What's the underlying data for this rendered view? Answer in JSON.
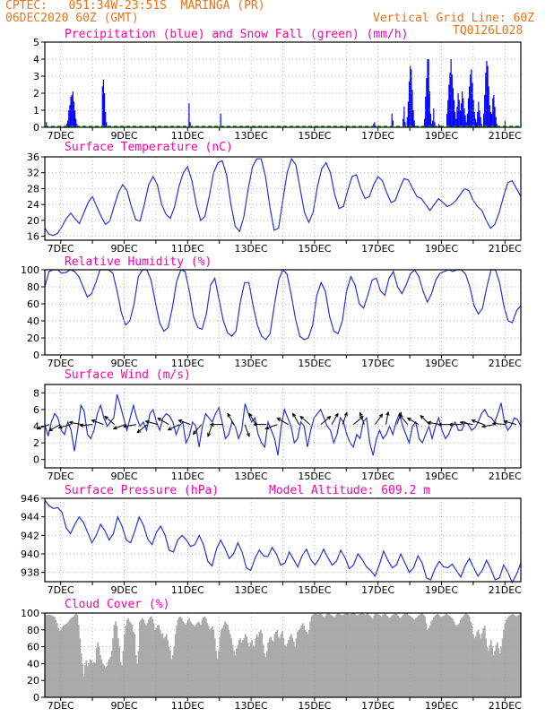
{
  "header": {
    "line1_left": "CPTEC:   051:34W-23:51S  MARINGA (PR)",
    "line2_left": "06DEC2020 60Z (GMT)",
    "line1_right": "Vertical Grid Line: 60Z",
    "line2_right": "TQ0126L028"
  },
  "colors": {
    "header": "#e8731a",
    "title": "#ff00aa",
    "precip": "#0000ff",
    "snow": "#00aa00",
    "line": "#2233dd",
    "cloud": "#aaaaaa",
    "wind": "#000000"
  },
  "chart_data": [
    {
      "id": "precip",
      "type": "bar",
      "title": "Precipitation (blue) and Snow Fall (green) (mm/h)",
      "xticks": [
        "7DEC",
        "9DEC",
        "11DEC",
        "13DEC",
        "15DEC",
        "17DEC",
        "19DEC",
        "21DEC"
      ],
      "ylim": [
        0,
        5
      ],
      "yticks": [
        0,
        1,
        2,
        3,
        4,
        5
      ],
      "values": [
        0,
        0.3,
        0,
        0,
        0,
        0,
        0,
        0,
        0,
        0,
        0,
        0,
        0,
        0,
        0,
        0,
        0,
        0,
        0,
        0,
        0,
        0.2,
        0.4,
        1.0,
        1.3,
        1.8,
        1.9,
        2.1,
        1.5,
        1.0,
        0.5,
        0.2,
        0,
        0,
        0,
        0,
        0,
        0,
        0,
        0,
        0,
        0,
        0,
        0,
        0,
        0,
        0,
        0,
        0,
        0,
        0,
        0,
        0,
        0,
        0,
        0,
        2.4,
        2.8,
        2.0,
        0.9,
        0.3,
        0,
        0,
        0,
        0,
        0,
        0,
        0,
        0,
        0,
        0,
        0,
        0,
        0,
        0,
        0,
        0,
        0,
        0,
        0,
        0,
        0,
        0,
        0,
        0,
        0,
        0,
        0,
        0,
        0,
        0,
        0,
        0,
        0,
        0,
        0,
        0,
        0,
        0,
        0,
        0,
        0,
        0,
        0,
        0,
        0,
        0,
        0,
        0,
        0,
        0,
        0,
        0,
        0,
        0,
        0,
        0,
        0,
        0,
        0,
        0,
        0,
        0,
        0,
        0,
        0,
        0,
        0,
        0,
        0,
        0,
        0,
        0,
        0,
        0,
        0,
        0,
        0,
        0,
        0,
        0,
        1.4,
        0.3,
        0,
        0,
        0,
        0,
        0,
        0,
        0,
        0,
        0,
        0,
        0,
        0,
        0,
        0,
        0,
        0,
        0,
        0,
        0,
        0,
        0,
        0,
        0,
        0,
        0,
        0,
        0,
        0,
        0,
        0.8,
        0,
        0,
        0,
        0,
        0,
        0,
        0,
        0,
        0,
        0,
        0,
        0,
        0,
        0,
        0,
        0,
        0,
        0,
        0,
        0,
        0,
        0,
        0,
        0,
        0,
        0,
        0,
        0,
        0,
        0,
        0,
        0,
        0,
        0,
        0,
        0,
        0,
        0,
        0,
        0,
        0,
        0,
        0,
        0,
        0,
        0,
        0,
        0,
        0,
        0,
        0,
        0,
        0,
        0,
        0,
        0,
        0,
        0,
        0,
        0,
        0,
        0,
        0,
        0,
        0,
        0,
        0,
        0,
        0,
        0,
        0,
        0,
        0,
        0,
        0,
        0,
        0,
        0,
        0,
        0,
        0,
        0,
        0,
        0,
        0,
        0,
        0,
        0,
        0,
        0,
        0,
        0,
        0,
        0,
        0,
        0,
        0,
        0,
        0,
        0,
        0,
        0,
        0,
        0,
        0,
        0,
        0,
        0,
        0,
        0,
        0,
        0,
        0,
        0,
        0,
        0,
        0,
        0,
        0,
        0,
        0,
        0,
        0,
        0,
        0,
        0,
        0,
        0,
        0,
        0,
        0,
        0,
        0,
        0,
        0,
        0,
        0,
        0,
        0,
        0,
        0,
        0,
        0,
        0,
        0,
        0,
        0,
        0,
        0,
        0.2,
        0.3,
        0.1,
        0,
        0,
        0,
        0,
        0,
        0,
        0,
        0,
        0,
        0,
        0,
        0,
        0,
        0,
        0,
        0.8,
        0.4,
        0,
        0,
        0,
        0,
        0,
        0,
        0,
        0,
        0,
        0.5,
        1.2,
        0.3,
        0,
        0.6,
        1.5,
        2.7,
        3.6,
        3.4,
        2.2,
        1.0,
        0.4,
        0,
        0,
        0,
        0,
        0,
        0,
        0,
        0,
        0,
        0.5,
        1.8,
        2.9,
        4.0,
        4.0,
        2.1,
        0.8,
        0.2,
        0.4,
        1.1,
        0.3,
        0,
        0,
        0,
        0.2,
        0.1,
        0,
        0,
        0,
        0,
        0,
        0,
        0.8,
        1.6,
        2.5,
        3.2,
        4.0,
        3.1,
        2.3,
        1.6,
        0.9,
        0.5,
        1.2,
        2.0,
        1.6,
        1.0,
        1.4,
        2.1,
        1.7,
        1.1,
        0.7,
        0.3,
        0.8,
        1.7,
        2.4,
        3.1,
        3.4,
        2.6,
        1.6,
        0.9,
        0.5,
        0.3,
        0.9,
        1.5,
        1.0,
        0.6,
        0.2,
        0,
        0.8,
        1.9,
        3.2,
        3.9,
        3.6,
        2.4,
        1.3,
        0.9,
        0.8,
        1.7,
        1.9,
        1.2,
        0.6,
        0.2,
        0,
        0,
        0,
        0,
        0,
        0,
        0.1,
        0.4,
        0,
        0,
        0,
        0,
        0,
        0,
        0,
        0,
        0,
        0,
        0,
        0,
        0,
        0,
        0
      ]
    },
    {
      "id": "temp",
      "type": "line",
      "title": "Surface Temperature (nC)",
      "xticks": [
        "7DEC",
        "9DEC",
        "11DEC",
        "13DEC",
        "15DEC",
        "17DEC",
        "19DEC",
        "21DEC"
      ],
      "ylim": [
        15,
        36
      ],
      "yticks": [
        16,
        20,
        24,
        28,
        32,
        36
      ],
      "values": [
        18,
        16.5,
        16.2,
        16.8,
        18.5,
        20.5,
        21.8,
        20.4,
        19.2,
        21.8,
        24.5,
        26,
        23.5,
        21,
        19,
        19.8,
        23.5,
        27,
        29,
        27.5,
        23.5,
        20.2,
        19.8,
        24,
        29,
        31,
        29,
        24,
        21.5,
        20.5,
        23.5,
        28.5,
        32,
        33.5,
        30,
        24,
        20,
        21,
        26,
        32,
        34.5,
        35,
        31.5,
        24,
        18.5,
        17.2,
        21,
        28,
        33.5,
        35.5,
        35.5,
        31,
        23.5,
        17.5,
        18,
        25,
        32,
        35.5,
        34,
        28,
        22,
        19.5,
        22,
        28.5,
        33,
        34.5,
        32,
        26.5,
        23,
        23.5,
        27.5,
        31,
        31.5,
        28,
        25.5,
        26,
        29,
        31,
        30,
        27,
        24.5,
        25,
        28,
        30.5,
        30.2,
        28,
        26,
        25.5,
        24,
        22.5,
        24,
        25.5,
        24.5,
        23.5,
        24,
        25,
        26.5,
        28,
        27.5,
        25,
        23.5,
        22.5,
        20,
        18,
        19,
        22,
        26,
        29.5,
        30,
        28,
        26
      ]
    },
    {
      "id": "rh",
      "type": "line",
      "title": "Relative Humidity (%)",
      "xticks": [
        "7DEC",
        "9DEC",
        "11DEC",
        "13DEC",
        "15DEC",
        "17DEC",
        "19DEC",
        "21DEC"
      ],
      "ylim": [
        0,
        100
      ],
      "yticks": [
        0,
        20,
        40,
        60,
        80,
        100
      ],
      "values": [
        80,
        98,
        100,
        100,
        96,
        97,
        100,
        98,
        92,
        80,
        68,
        72,
        85,
        100,
        100,
        100,
        96,
        75,
        50,
        35,
        40,
        60,
        92,
        100,
        100,
        88,
        62,
        38,
        28,
        32,
        55,
        86,
        100,
        98,
        75,
        45,
        32,
        30,
        48,
        82,
        90,
        65,
        40,
        26,
        22,
        28,
        62,
        85,
        85,
        58,
        35,
        22,
        18,
        25,
        58,
        88,
        100,
        95,
        70,
        42,
        22,
        18,
        20,
        35,
        70,
        85,
        75,
        45,
        28,
        25,
        40,
        75,
        92,
        82,
        60,
        55,
        70,
        88,
        90,
        75,
        70,
        90,
        98,
        80,
        72,
        82,
        95,
        100,
        92,
        75,
        62,
        72,
        88,
        96,
        98,
        100,
        98,
        100,
        100,
        95,
        80,
        58,
        48,
        55,
        80,
        100,
        100,
        85,
        58,
        40,
        38,
        52,
        58
      ]
    },
    {
      "id": "wind",
      "type": "line",
      "title": "Surface Wind (m/s)",
      "xticks": [
        "7DEC",
        "9DEC",
        "11DEC",
        "13DEC",
        "15DEC",
        "17DEC",
        "19DEC",
        "21DEC"
      ],
      "ylim": [
        -1,
        9
      ],
      "yticks": [
        0,
        2,
        4,
        6,
        8
      ],
      "values": [
        4.2,
        2.8,
        4.5,
        5.5,
        5,
        3.5,
        3,
        4.5,
        3.5,
        1,
        3.5,
        6.5,
        5.8,
        3,
        2.5,
        3.5,
        5.5,
        6.5,
        5,
        4,
        4.5,
        5,
        7.8,
        6.5,
        5,
        3.5,
        5,
        6.5,
        5,
        4,
        4.5,
        3.5,
        5.5,
        6,
        4.5,
        3.5,
        5,
        5.5,
        5.2,
        4.5,
        3,
        4,
        4.5,
        2,
        2.8,
        4.5,
        4,
        1.5,
        4,
        5.5,
        5,
        4.5,
        5.5,
        6.2,
        4.5,
        2.5,
        3,
        4.5,
        4,
        2.5,
        3.5,
        6.7,
        5.5,
        4.5,
        5,
        3,
        2,
        1.5,
        4.5,
        3.5,
        2.5,
        0.5,
        4,
        6,
        5,
        4,
        2,
        2.5,
        4.5,
        4,
        1.5,
        3.5,
        5,
        5.5,
        6,
        5,
        4,
        3.5,
        2,
        3,
        5,
        4.5,
        3,
        2,
        1.5,
        3,
        2.5,
        4.5,
        5,
        2,
        0.5,
        2.5,
        3.5,
        2.5,
        3,
        4,
        3,
        4.5,
        5.5,
        4,
        3,
        2,
        4,
        4.5,
        2.5,
        2,
        3,
        4,
        2.5,
        4,
        5,
        3.5,
        2.5,
        3,
        4,
        4.5,
        3.5,
        3.5,
        4.5,
        4.2,
        3.5,
        3.8,
        4.5,
        5.5,
        6,
        5.2,
        5,
        4.5,
        5.5,
        6.8,
        4.5,
        3.5,
        4,
        5,
        4.8,
        4
      ]
    },
    {
      "id": "pres",
      "type": "line",
      "title": "Surface Pressure (hPa)",
      "annotation": "Model Altitude:  609.2 m",
      "xticks": [
        "7DEC",
        "9DEC",
        "11DEC",
        "13DEC",
        "15DEC",
        "17DEC",
        "19DEC",
        "21DEC"
      ],
      "ylim": [
        937,
        946
      ],
      "yticks": [
        938,
        940,
        942,
        944,
        946
      ],
      "values": [
        945.8,
        945.2,
        944.9,
        945,
        944.5,
        942.8,
        942.2,
        943.2,
        944,
        943.4,
        942.3,
        941.2,
        942,
        943.2,
        942.5,
        941.5,
        942.2,
        944,
        943,
        941.5,
        941.2,
        942.5,
        944,
        943.1,
        941.6,
        941,
        942.3,
        943,
        942.1,
        940.4,
        940.2,
        941.5,
        942,
        941.5,
        940.8,
        941,
        942,
        941,
        939.2,
        938.7,
        940.5,
        941.5,
        940.6,
        939.5,
        940,
        941.2,
        940.2,
        938.5,
        938.2,
        939.5,
        940.4,
        939.8,
        939.7,
        940.7,
        940,
        938.8,
        939,
        940.2,
        939.4,
        938.6,
        939.8,
        940.5,
        939.4,
        938.8,
        939.5,
        940.5,
        939.6,
        938.8,
        939.2,
        940.4,
        939.6,
        938.4,
        938.8,
        940,
        939.4,
        938.6,
        938.2,
        937.6,
        938.8,
        940.3,
        939.3,
        938.5,
        938.8,
        940,
        939,
        938,
        938.5,
        939.8,
        939,
        937.4,
        937.2,
        938.4,
        939.2,
        938.6,
        938.5,
        938.9,
        938.2,
        937.5,
        938.7,
        939.5,
        938.5,
        937.6,
        938.2,
        939.3,
        938.4,
        937.2,
        937.4,
        938.8,
        938,
        936.9,
        937.8,
        939
      ]
    },
    {
      "id": "cloud",
      "type": "bar",
      "title": "Cloud Cover (%)",
      "xticks": [
        "7DEC",
        "9DEC",
        "11DEC",
        "13DEC",
        "15DEC",
        "17DEC",
        "19DEC",
        "21DEC"
      ],
      "ylim": [
        0,
        100
      ],
      "yticks": [
        0,
        20,
        40,
        60,
        80,
        100
      ],
      "values": [
        98,
        98,
        98,
        98,
        98,
        97,
        96,
        96,
        92,
        88,
        82,
        79,
        80,
        83,
        85,
        86,
        87,
        88,
        90,
        92,
        94,
        95,
        96,
        98,
        100,
        98,
        86,
        70,
        52,
        40,
        25,
        38,
        44,
        37,
        40,
        45,
        44,
        40,
        42,
        41,
        58,
        65,
        60,
        50,
        45,
        40,
        38,
        35,
        37,
        42,
        45,
        48,
        55,
        70,
        86,
        90,
        85,
        70,
        60,
        42,
        38,
        55,
        75,
        85,
        92,
        94,
        90,
        88,
        86,
        78,
        75,
        50,
        40,
        55,
        90,
        92,
        94,
        92,
        88,
        85,
        88,
        92,
        95,
        96,
        93,
        88,
        80,
        82,
        85,
        86,
        80,
        75,
        76,
        70,
        72,
        75,
        68,
        60,
        55,
        45,
        50,
        60,
        75,
        85,
        92,
        95,
        96,
        94,
        90,
        88,
        86,
        89,
        92,
        94,
        90,
        87,
        86,
        84,
        86,
        88,
        90,
        88,
        86,
        92,
        95,
        96,
        94,
        88,
        85,
        80,
        82,
        84,
        80,
        70,
        55,
        45,
        55,
        72,
        80,
        82,
        86,
        90,
        88,
        86,
        80,
        75,
        70,
        62,
        55,
        50,
        58,
        62,
        68,
        70,
        65,
        68,
        70,
        75,
        72,
        65,
        60,
        65,
        68,
        62,
        60,
        70,
        75,
        72,
        78,
        80,
        76,
        62,
        52,
        48,
        55,
        65,
        70,
        72,
        68,
        66,
        75,
        78,
        80,
        72,
        70,
        75,
        78,
        70,
        62,
        60,
        64,
        68,
        72,
        75,
        70,
        66,
        60,
        70,
        78,
        80,
        82,
        85,
        88,
        85,
        80,
        78,
        75,
        80,
        90,
        96,
        98,
        99,
        100,
        99,
        98,
        99,
        100,
        98,
        96,
        95,
        97,
        99,
        100,
        100,
        98,
        97,
        96,
        95,
        97,
        99,
        100,
        99,
        98,
        97,
        98,
        99,
        100,
        100,
        99,
        98,
        99,
        100,
        100,
        99,
        98,
        97,
        98,
        99,
        100,
        100,
        99,
        98,
        99,
        100,
        98,
        97,
        95,
        93,
        97,
        99,
        100,
        99,
        98,
        97,
        96,
        98,
        100,
        99,
        97,
        96,
        94,
        95,
        97,
        98,
        99,
        100,
        99,
        97,
        95,
        94,
        96,
        98,
        99,
        100,
        100,
        98,
        97,
        96,
        95,
        93,
        92,
        94,
        95,
        97,
        98,
        99,
        100,
        98,
        96,
        88,
        80,
        82,
        85,
        90,
        92,
        95,
        97,
        98,
        99,
        98,
        96,
        95,
        96,
        97,
        98,
        100,
        98,
        97,
        96,
        95,
        93,
        90,
        86,
        84,
        86,
        88,
        92,
        94,
        96,
        98,
        100,
        99,
        98,
        96,
        90,
        85,
        75,
        70,
        72,
        78,
        80,
        75,
        70,
        76,
        82,
        85,
        70,
        60,
        55,
        62,
        68,
        60,
        50,
        55,
        62,
        65,
        58,
        52,
        60,
        70,
        80,
        88,
        92,
        94,
        96,
        97,
        98,
        99,
        98,
        97,
        96,
        97,
        98,
        99
      ]
    }
  ]
}
